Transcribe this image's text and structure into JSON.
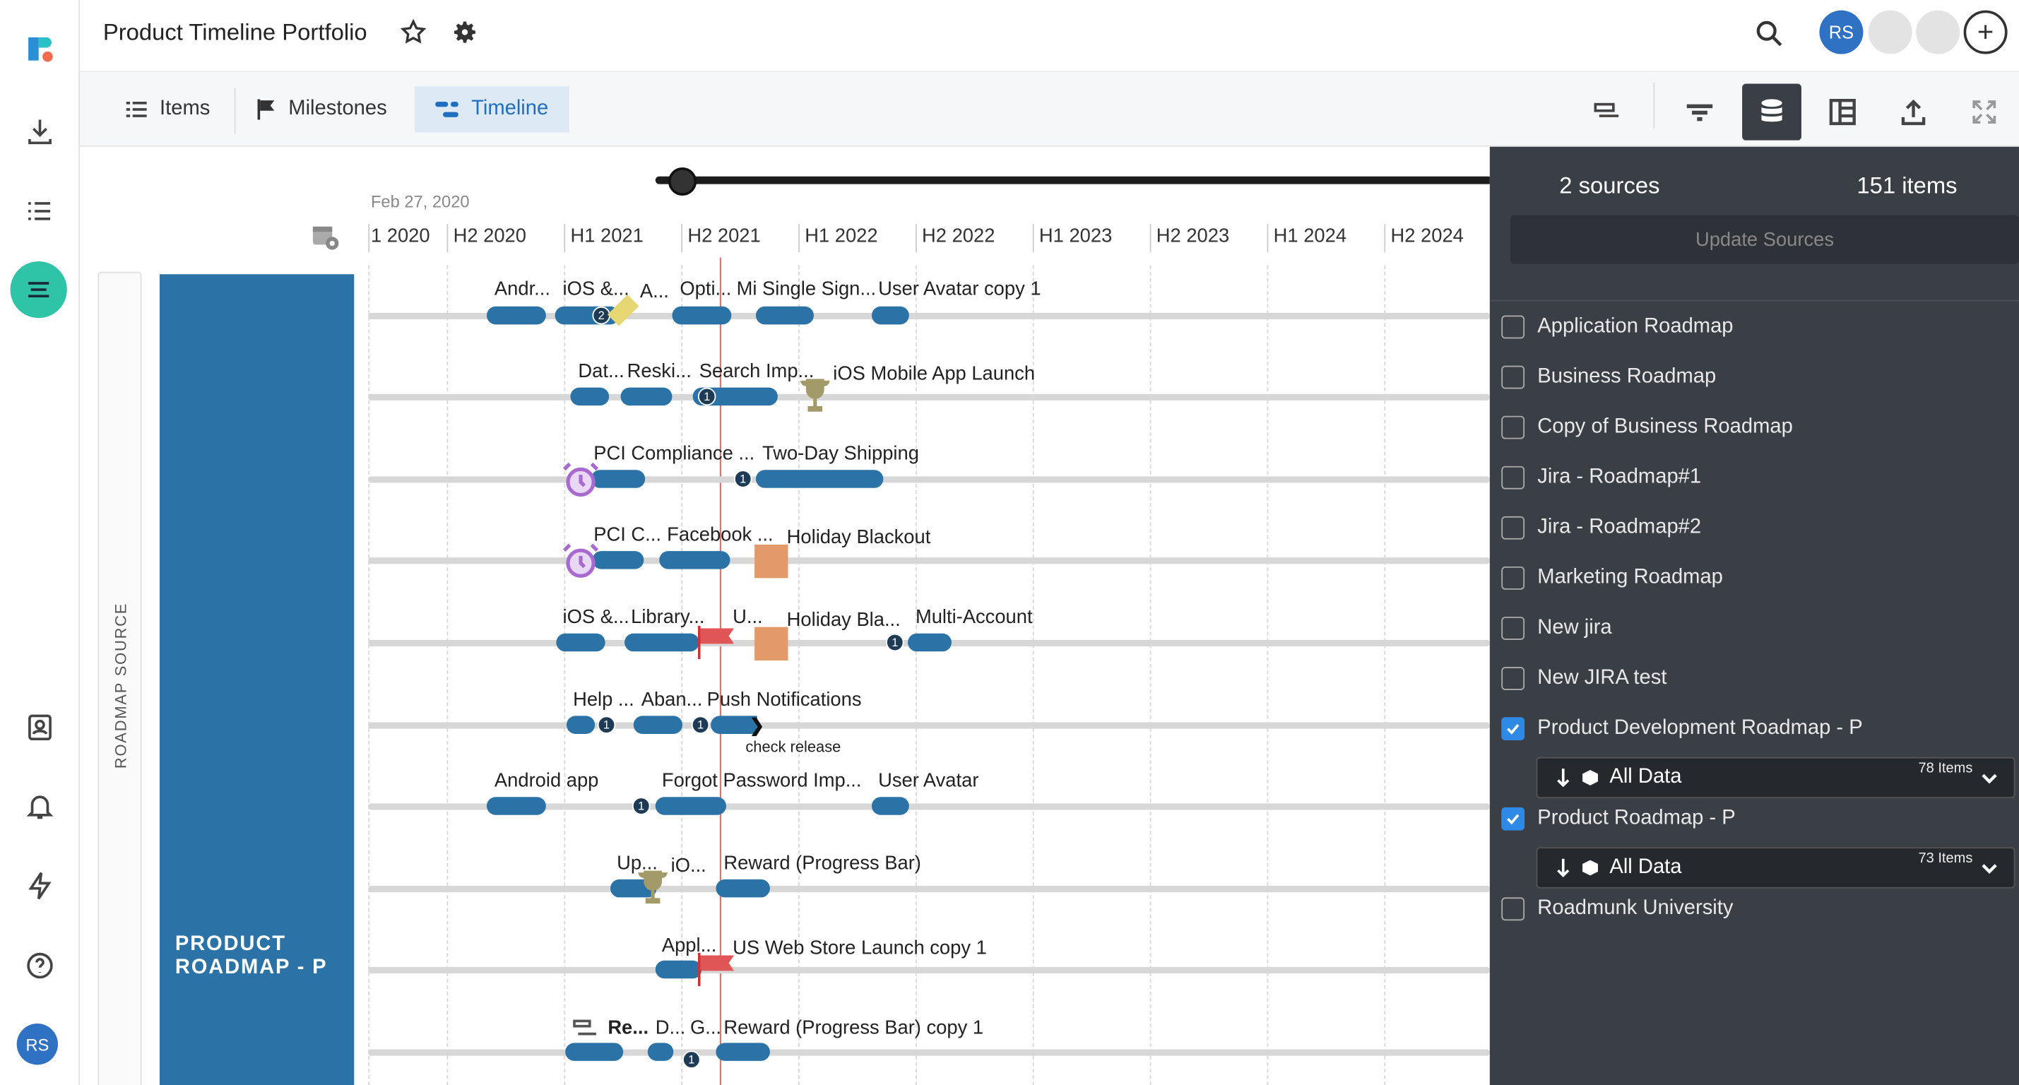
{
  "header": {
    "title": "Product Timeline Portfolio",
    "user_initials": "RS"
  },
  "tabs": [
    {
      "label": "Items"
    },
    {
      "label": "Milestones"
    },
    {
      "label": "Timeline"
    }
  ],
  "timeline": {
    "start_date": "Feb 27, 2020",
    "ticks": [
      "1 2020",
      "H2 2020",
      "H1 2021",
      "H2 2021",
      "H1 2022",
      "H2 2022",
      "H1 2023",
      "H2 2023",
      "H1 2024",
      "H2 2024"
    ],
    "roadmap_source_label": "ROADMAP SOURCE",
    "group_label": "PRODUCT ROADMAP - P",
    "lanes": [
      {
        "labels": [
          "Andr...",
          "iOS &...",
          "A...",
          "Opti...",
          "Mi",
          "Single Sign...",
          "User Avatar copy 1"
        ],
        "badges": [
          "2"
        ]
      },
      {
        "labels": [
          "Dat...",
          "Reski...",
          "Search Imp...",
          "iOS Mobile App Launch"
        ],
        "badges": [
          "1"
        ]
      },
      {
        "labels": [
          "PCI Compliance ...",
          "Two-Day Shipping"
        ],
        "badges": [
          "1"
        ]
      },
      {
        "labels": [
          "PCI C...",
          "Facebook ...",
          "Holiday Blackout"
        ],
        "badges": []
      },
      {
        "labels": [
          "iOS &...",
          "Library...",
          "U...",
          "Holiday Bla...",
          "Multi-Account"
        ],
        "badges": [
          "1"
        ]
      },
      {
        "labels": [
          "Help ...",
          "Aban...",
          "Push Notifications",
          "check release"
        ],
        "badges": [
          "1",
          "1"
        ]
      },
      {
        "labels": [
          "Android app",
          "Forgot Password Imp...",
          "User Avatar"
        ],
        "badges": [
          "1"
        ]
      },
      {
        "labels": [
          "Up...",
          "iO...",
          "Reward (Progress Bar)"
        ],
        "badges": []
      },
      {
        "labels": [
          "Appl...",
          "US Web Store Launch copy 1"
        ],
        "badges": []
      },
      {
        "labels": [
          "Re...",
          "D...",
          "G...",
          "Reward (Progress Bar) copy 1"
        ],
        "badges": [
          "1"
        ]
      }
    ]
  },
  "panel": {
    "sources_count": "2 sources",
    "items_count": "151 items",
    "update_button": "Update Sources",
    "sources": [
      {
        "label": "Application Roadmap",
        "checked": false
      },
      {
        "label": "Business Roadmap",
        "checked": false
      },
      {
        "label": "Copy of Business Roadmap",
        "checked": false
      },
      {
        "label": "Jira - Roadmap#1",
        "checked": false
      },
      {
        "label": "Jira - Roadmap#2",
        "checked": false
      },
      {
        "label": "Marketing Roadmap",
        "checked": false
      },
      {
        "label": "New jira",
        "checked": false
      },
      {
        "label": "New JIRA test",
        "checked": false
      },
      {
        "label": "Product Development Roadmap - P",
        "checked": true,
        "filter": "All Data",
        "count": "78 Items"
      },
      {
        "label": "Product Roadmap - P",
        "checked": true,
        "filter": "All Data",
        "count": "73 Items"
      },
      {
        "label": "Roadmunk University",
        "checked": false
      }
    ]
  },
  "colors": {
    "accent": "#2fc3a8",
    "bar": "#2b72a6",
    "panel": "#3a3f46",
    "today": "#e55555"
  }
}
